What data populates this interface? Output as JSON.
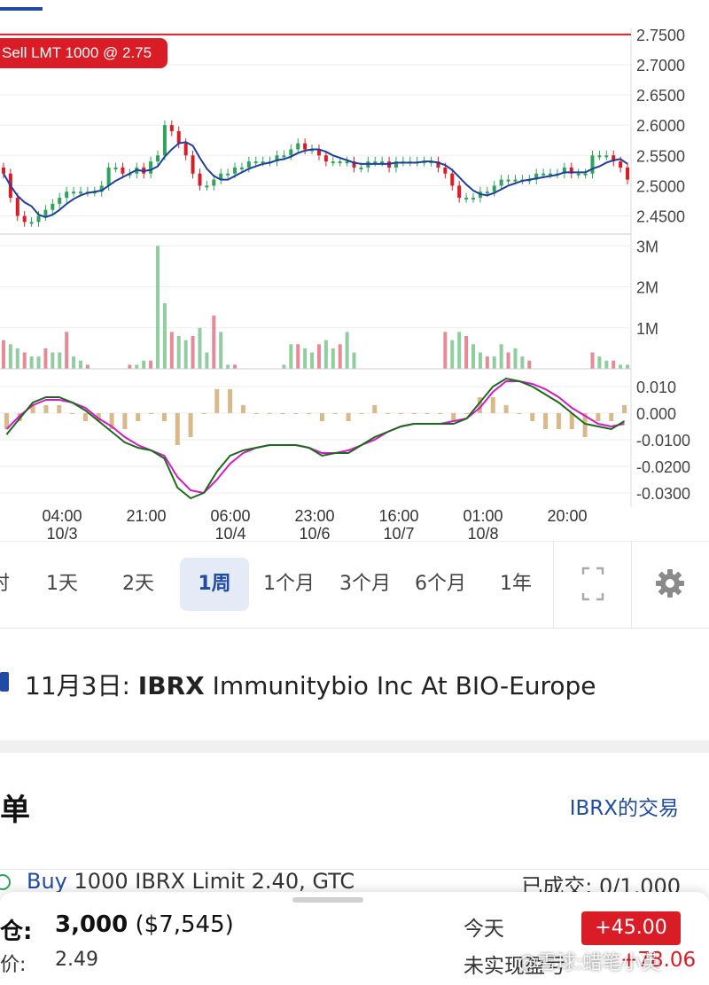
{
  "colors": {
    "accent": "#1f4ba5",
    "red": "#d91c25",
    "green": "#2fa35a"
  },
  "order_flag": "Sell LMT 1000 @ 2.75",
  "chart_data": [
    {
      "type": "candlestick",
      "y_ticks": [
        "2.7500",
        "2.7000",
        "2.6500",
        "2.6000",
        "2.5500",
        "2.5000",
        "2.4500"
      ],
      "ylim": [
        2.42,
        2.76
      ],
      "limit_line": 2.75,
      "x_ticks": [
        {
          "time": "04:00",
          "date": "10/3"
        },
        {
          "time": "21:00",
          "date": ""
        },
        {
          "time": "06:00",
          "date": "10/4"
        },
        {
          "time": "23:00",
          "date": "10/6"
        },
        {
          "time": "16:00",
          "date": "10/7"
        },
        {
          "time": "01:00",
          "date": "10/8"
        },
        {
          "time": "20:00",
          "date": ""
        }
      ],
      "close": [
        2.52,
        2.48,
        2.45,
        2.44,
        2.44,
        2.45,
        2.46,
        2.47,
        2.48,
        2.49,
        2.49,
        2.49,
        2.49,
        2.49,
        2.5,
        2.53,
        2.53,
        2.52,
        2.52,
        2.53,
        2.52,
        2.54,
        2.55,
        2.6,
        2.59,
        2.57,
        2.55,
        2.52,
        2.5,
        2.5,
        2.51,
        2.52,
        2.52,
        2.53,
        2.53,
        2.54,
        2.54,
        2.54,
        2.54,
        2.55,
        2.55,
        2.56,
        2.57,
        2.56,
        2.56,
        2.55,
        2.54,
        2.54,
        2.54,
        2.54,
        2.53,
        2.53,
        2.54,
        2.54,
        2.54,
        2.53,
        2.54,
        2.54,
        2.54,
        2.54,
        2.54,
        2.54,
        2.53,
        2.52,
        2.5,
        2.48,
        2.48,
        2.48,
        2.49,
        2.49,
        2.5,
        2.51,
        2.51,
        2.51,
        2.51,
        2.51,
        2.52,
        2.52,
        2.52,
        2.52,
        2.53,
        2.52,
        2.52,
        2.52,
        2.55,
        2.55,
        2.55,
        2.54,
        2.53,
        2.51
      ],
      "volume_ticks": [
        "3M",
        "2M",
        "1M"
      ],
      "volume_max": 3.2,
      "volume": [
        0.7,
        0.6,
        0.5,
        0.4,
        0.3,
        0.3,
        0.5,
        0.4,
        0.4,
        0.9,
        0.3,
        0.2,
        0.1,
        0.0,
        0.0,
        0.0,
        0.0,
        0.0,
        0.1,
        0.1,
        0.2,
        0.2,
        3.0,
        1.6,
        0.9,
        0.8,
        0.7,
        0.8,
        1.0,
        0.4,
        1.3,
        0.9,
        0.1,
        0.1,
        0.0,
        0.0,
        0.0,
        0.0,
        0.0,
        0.0,
        0.1,
        0.6,
        0.6,
        0.5,
        0.4,
        0.6,
        0.7,
        0.5,
        0.6,
        0.9,
        0.4,
        0.0,
        0.0,
        0.0,
        0.0,
        0.0,
        0.0,
        0.0,
        0.0,
        0.0,
        0.0,
        0.0,
        0.0,
        0.9,
        0.7,
        0.9,
        0.8,
        0.6,
        0.4,
        0.3,
        0.3,
        0.6,
        0.4,
        0.5,
        0.3,
        0.2,
        0.0,
        0.0,
        0.0,
        0.0,
        0.0,
        0.0,
        0.0,
        0.0,
        0.4,
        0.3,
        0.2,
        0.2,
        0.1,
        0.1
      ],
      "macd_ticks": [
        "0.010",
        "0.000",
        "-0.0100",
        "-0.0200",
        "-0.0300"
      ],
      "macd_ylim": [
        -0.034,
        0.014
      ],
      "macd_line": [
        -0.008,
        -0.002,
        0.004,
        0.006,
        0.006,
        0.004,
        0.001,
        -0.003,
        -0.007,
        -0.011,
        -0.013,
        -0.014,
        -0.017,
        -0.028,
        -0.032,
        -0.03,
        -0.022,
        -0.016,
        -0.014,
        -0.013,
        -0.012,
        -0.012,
        -0.012,
        -0.013,
        -0.016,
        -0.015,
        -0.015,
        -0.012,
        -0.009,
        -0.007,
        -0.005,
        -0.004,
        -0.004,
        -0.004,
        -0.004,
        -0.002,
        0.004,
        0.01,
        0.013,
        0.012,
        0.01,
        0.007,
        0.004,
        0.0,
        -0.004,
        -0.005,
        -0.006,
        -0.003
      ],
      "signal_line": [
        -0.006,
        -0.001,
        0.003,
        0.005,
        0.005,
        0.004,
        0.002,
        -0.002,
        -0.005,
        -0.009,
        -0.012,
        -0.014,
        -0.016,
        -0.024,
        -0.029,
        -0.03,
        -0.025,
        -0.019,
        -0.015,
        -0.013,
        -0.012,
        -0.012,
        -0.012,
        -0.013,
        -0.015,
        -0.015,
        -0.014,
        -0.012,
        -0.01,
        -0.007,
        -0.005,
        -0.004,
        -0.004,
        -0.004,
        -0.003,
        -0.002,
        0.002,
        0.008,
        0.012,
        0.012,
        0.011,
        0.009,
        0.006,
        0.002,
        -0.001,
        -0.004,
        -0.005,
        -0.004
      ]
    }
  ],
  "range_buttons": [
    "时",
    "1天",
    "2天",
    "1周",
    "1个月",
    "3个月",
    "6个月",
    "1年"
  ],
  "active_range": "1周",
  "event": {
    "date": "11月3日:",
    "ticker": "IBRX",
    "title": "Immunitybio Inc At BIO-Europe"
  },
  "orders": {
    "title": "挂单",
    "link": "IBRX的交易",
    "items": [
      {
        "side": "Buy",
        "desc": "1000 IBRX Limit 2.40, GTC",
        "fill_label": "已成交:",
        "fill": "0/1,000"
      }
    ]
  },
  "position": {
    "label": "持仓:",
    "qty": "3,000",
    "value": "($7,545)",
    "avg_label": "均价:",
    "avg": "2.49",
    "today_label": "今天",
    "today": "+45.00",
    "unrealized_label": "未实现盈亏",
    "unrealized": "+78.06"
  },
  "watermark": "@雪球:蜡笔小英"
}
